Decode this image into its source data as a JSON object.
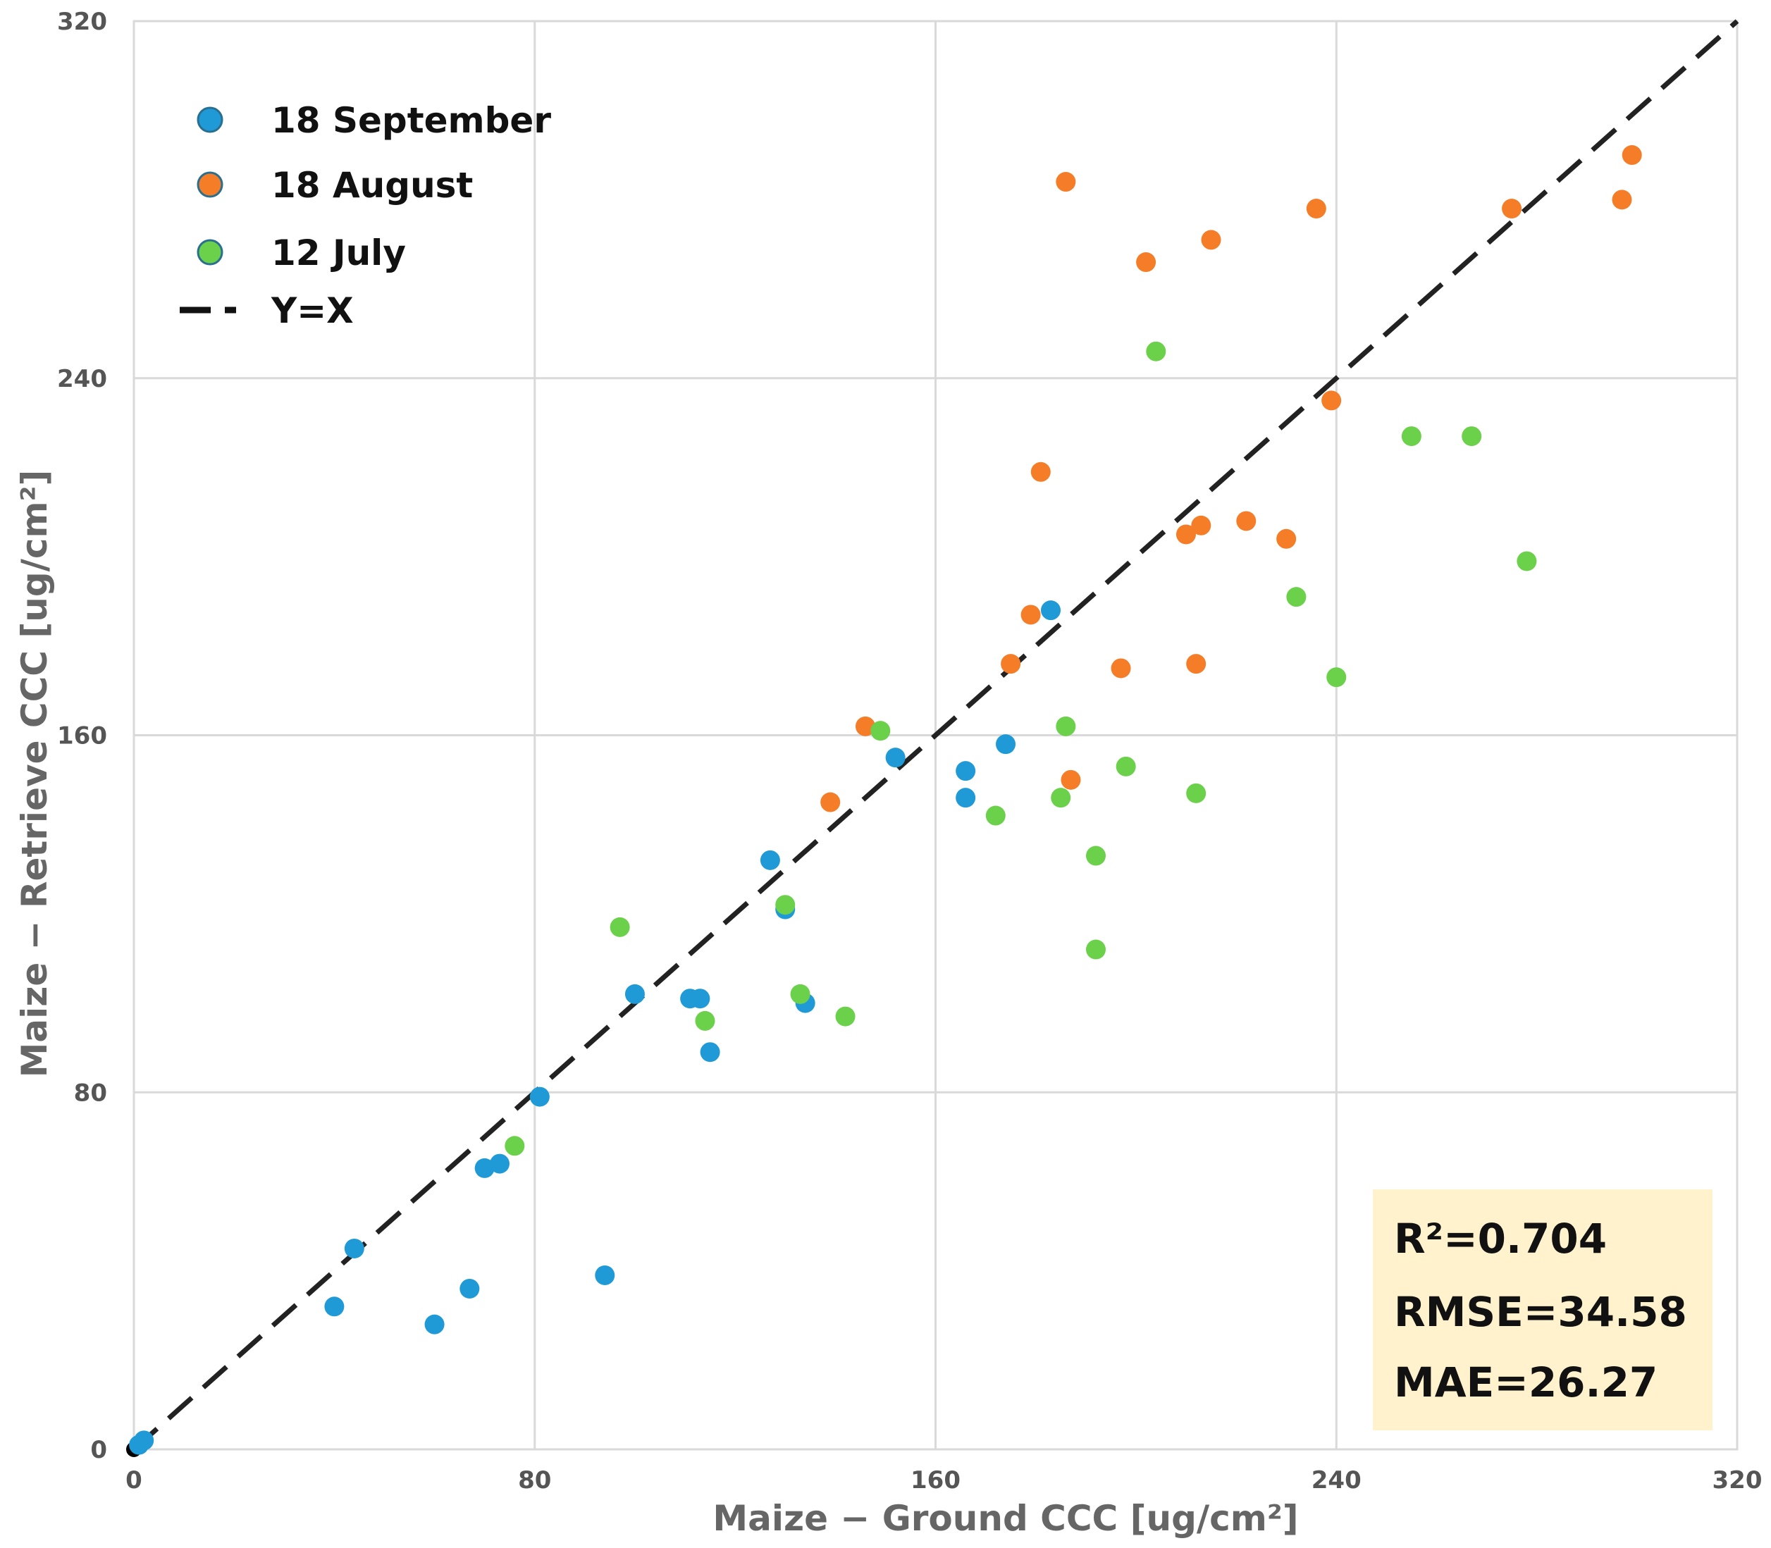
{
  "chart_data": {
    "type": "scatter",
    "title": "",
    "xlabel": "Maize − Ground CCC [ug/cm²]",
    "ylabel": "Maize − Retrieve CCC [ug/cm²]",
    "xlim": [
      0,
      320
    ],
    "ylim": [
      0,
      320
    ],
    "xticks": [
      "0",
      "80",
      "160",
      "240",
      "320"
    ],
    "yticks": [
      "0",
      "80",
      "160",
      "240",
      "320"
    ],
    "grid": true,
    "legend_position": "top-left",
    "series": [
      {
        "name": "18 September",
        "color": "#1f9ad6",
        "points": [
          [
            1,
            1
          ],
          [
            2,
            2
          ],
          [
            44,
            45
          ],
          [
            40,
            32
          ],
          [
            60,
            28
          ],
          [
            67,
            36
          ],
          [
            70,
            63
          ],
          [
            73,
            64
          ],
          [
            81,
            79
          ],
          [
            94,
            39
          ],
          [
            100,
            102
          ],
          [
            111,
            101
          ],
          [
            113,
            101
          ],
          [
            115,
            89
          ],
          [
            127,
            132
          ],
          [
            130,
            121
          ],
          [
            134,
            100
          ],
          [
            152,
            155
          ],
          [
            166,
            152
          ],
          [
            166,
            146
          ],
          [
            174,
            158
          ],
          [
            183,
            188
          ]
        ]
      },
      {
        "name": "18 August",
        "color": "#f57d28",
        "points": [
          [
            186,
            284
          ],
          [
            202,
            266
          ],
          [
            215,
            271
          ],
          [
            236,
            278
          ],
          [
            275,
            278
          ],
          [
            299,
            290
          ],
          [
            297,
            280
          ],
          [
            239,
            235
          ],
          [
            181,
            219
          ],
          [
            179,
            187
          ],
          [
            175,
            176
          ],
          [
            213,
            207
          ],
          [
            210,
            205
          ],
          [
            222,
            208
          ],
          [
            230,
            204
          ],
          [
            197,
            175
          ],
          [
            212,
            176
          ],
          [
            146,
            162
          ],
          [
            139,
            145
          ],
          [
            187,
            150
          ]
        ]
      },
      {
        "name": "12 July",
        "color": "#6bd04a",
        "points": [
          [
            204,
            246
          ],
          [
            255,
            227
          ],
          [
            267,
            227
          ],
          [
            278,
            199
          ],
          [
            232,
            191
          ],
          [
            240,
            173
          ],
          [
            186,
            162
          ],
          [
            149,
            161
          ],
          [
            198,
            153
          ],
          [
            212,
            147
          ],
          [
            185,
            146
          ],
          [
            172,
            142
          ],
          [
            192,
            133
          ],
          [
            192,
            112
          ],
          [
            130,
            122
          ],
          [
            97,
            117
          ],
          [
            133,
            102
          ],
          [
            142,
            97
          ],
          [
            114,
            96
          ],
          [
            76,
            68
          ]
        ]
      }
    ],
    "reference_line": {
      "name": "Y=X",
      "color": "#222222"
    },
    "legend": [
      "18 September",
      "18 August",
      "12 July",
      "Y=X"
    ],
    "stats": {
      "r2": "R²=0.704",
      "rmse": "RMSE=34.58",
      "mae": "MAE=26.27"
    },
    "stats_box_color": "#fff2cc"
  }
}
